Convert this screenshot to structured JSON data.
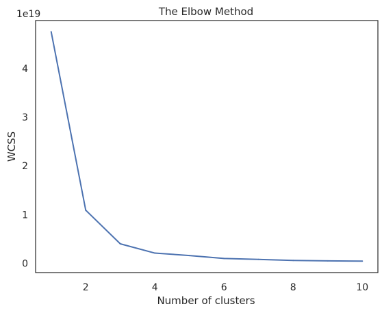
{
  "chart_data": {
    "type": "line",
    "title": "The Elbow Method",
    "xlabel": "Number of clusters",
    "ylabel": "WCSS",
    "y_offset_label": "1e19",
    "x": [
      1,
      2,
      3,
      4,
      5,
      6,
      7,
      8,
      9,
      10
    ],
    "series": [
      {
        "values": [
          4.75,
          1.09,
          0.4,
          0.21,
          0.16,
          0.1,
          0.08,
          0.06,
          0.05,
          0.045
        ],
        "color": "#4c72b0"
      }
    ],
    "xlim": [
      0.55,
      10.45
    ],
    "ylim": [
      -0.19,
      4.98
    ],
    "x_ticks": [
      2,
      4,
      6,
      8,
      10
    ],
    "x_tick_labels": [
      "2",
      "4",
      "6",
      "8",
      "10"
    ],
    "y_ticks": [
      0,
      1,
      2,
      3,
      4
    ],
    "y_tick_labels": [
      "0",
      "1",
      "2",
      "3",
      "4"
    ],
    "grid": false,
    "legend": "none",
    "colors": {
      "spine": "#262626",
      "text": "#262626",
      "background": "#ffffff"
    }
  }
}
